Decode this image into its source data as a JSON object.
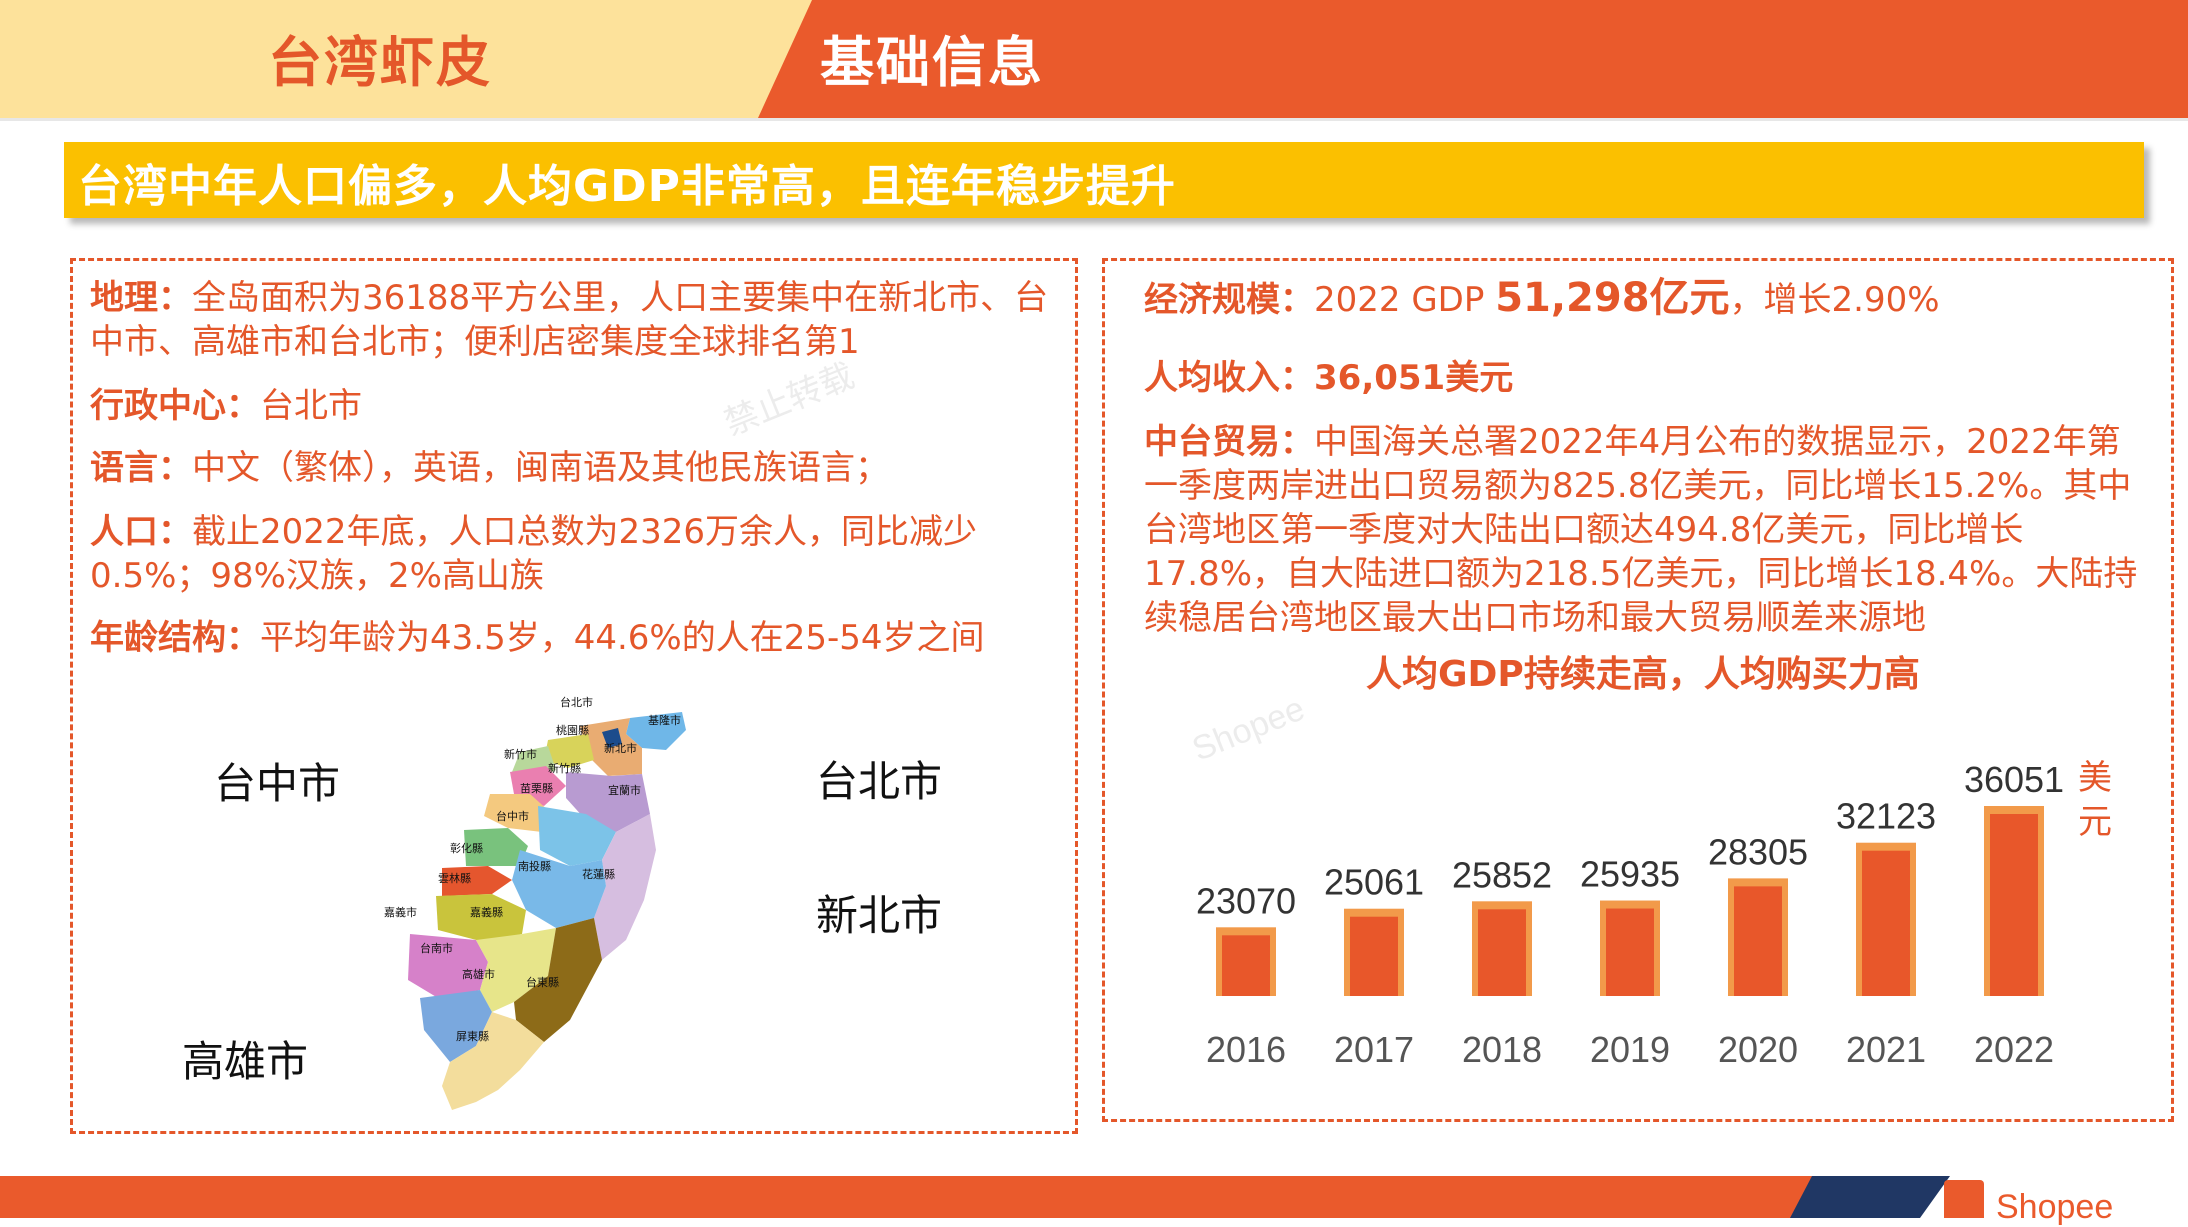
{
  "header": {
    "tag": "台湾虾皮",
    "title": "基础信息"
  },
  "banner": {
    "text": "台湾中年人口偏多，人均GDP非常高，且连年稳步提升"
  },
  "left": {
    "items": [
      {
        "label": "地理：",
        "text": "全岛面积为36188平方公里，人口主要集中在新北市、台中市、高雄市和台北市；便利店密集度全球排名第1"
      },
      {
        "label": "行政中心：",
        "text": "台北市"
      },
      {
        "label": "语言：",
        "text": "中文（繁体），英语，闽南语及其他民族语言；"
      },
      {
        "label": "人口：",
        "text": "截止2022年底，人口总数为2326万余人，同比减少0.5%；98%汉族，2%高山族"
      },
      {
        "label": "年龄结构：",
        "text": "平均年龄为43.5岁，44.6%的人在25-54岁之间"
      }
    ],
    "cities": {
      "taichung": "台中市",
      "taipei": "台北市",
      "newtaipei": "新北市",
      "kaohsiung": "高雄市"
    },
    "map_labels": [
      "台北市",
      "基隆市",
      "桃園縣",
      "新竹市",
      "新竹縣",
      "新北市",
      "苗栗縣",
      "宜蘭市",
      "台中市",
      "彰化縣",
      "南投縣",
      "花蓮縣",
      "雲林縣",
      "嘉義市",
      "嘉義縣",
      "台南市",
      "高雄市",
      "台東縣",
      "屏東縣"
    ]
  },
  "right": {
    "econ_label": "经济规模：",
    "econ_prefix": "2022 GDP ",
    "econ_value": "51,298亿元",
    "econ_suffix": "，增长2.90%",
    "income_label": "人均收入：",
    "income_value": "36,051美元",
    "trade_label": "中台贸易：",
    "trade_text": "中国海关总署2022年4月公布的数据显示，2022年第一季度两岸进出口贸易额为825.8亿美元，同比增长15.2%。其中台湾地区第一季度对大陆出口额达494.8亿美元，同比增长17.8%，自大陆进口额为218.5亿美元，同比增长18.4%。大陆持续稳居台湾地区最大出口市场和最大贸易顺差来源地"
  },
  "chart_data": {
    "type": "bar",
    "title": "人均GDP持续走高，人均购买力高",
    "unit": "美元",
    "categories": [
      "2016",
      "2017",
      "2018",
      "2019",
      "2020",
      "2021",
      "2022"
    ],
    "values": [
      23070,
      25061,
      25852,
      25935,
      28305,
      32123,
      36051
    ],
    "bar_color": "#e8572a",
    "bar_outline": "#f29a4a"
  },
  "watermark": {
    "text": "禁止转载",
    "brand": "Shopee"
  },
  "footer": {
    "brand": "Shopee"
  }
}
